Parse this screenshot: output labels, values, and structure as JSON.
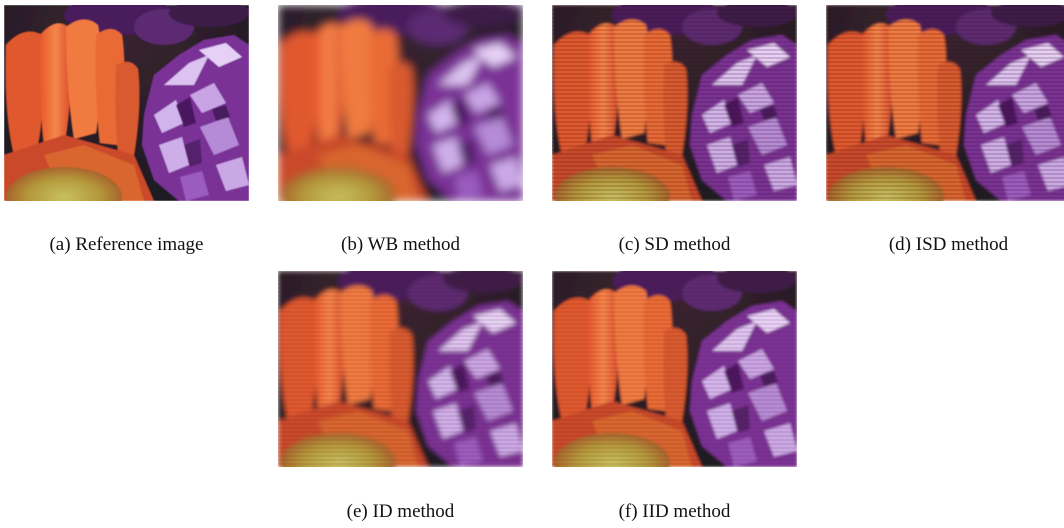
{
  "figure": {
    "panels": [
      {
        "id": "a",
        "caption": "(a) Reference image",
        "image": "reference-flower-photo"
      },
      {
        "id": "b",
        "caption": "(b) WB method",
        "image": "wb-method-flower-photo"
      },
      {
        "id": "c",
        "caption": "(c) SD method",
        "image": "sd-method-flower-photo"
      },
      {
        "id": "d",
        "caption": "(d) ISD method",
        "image": "isd-method-flower-photo"
      },
      {
        "id": "e",
        "caption": "(e) ID method",
        "image": "id-method-flower-photo"
      },
      {
        "id": "f",
        "caption": "(f) IID method",
        "image": "iid-method-flower-photo"
      }
    ]
  }
}
